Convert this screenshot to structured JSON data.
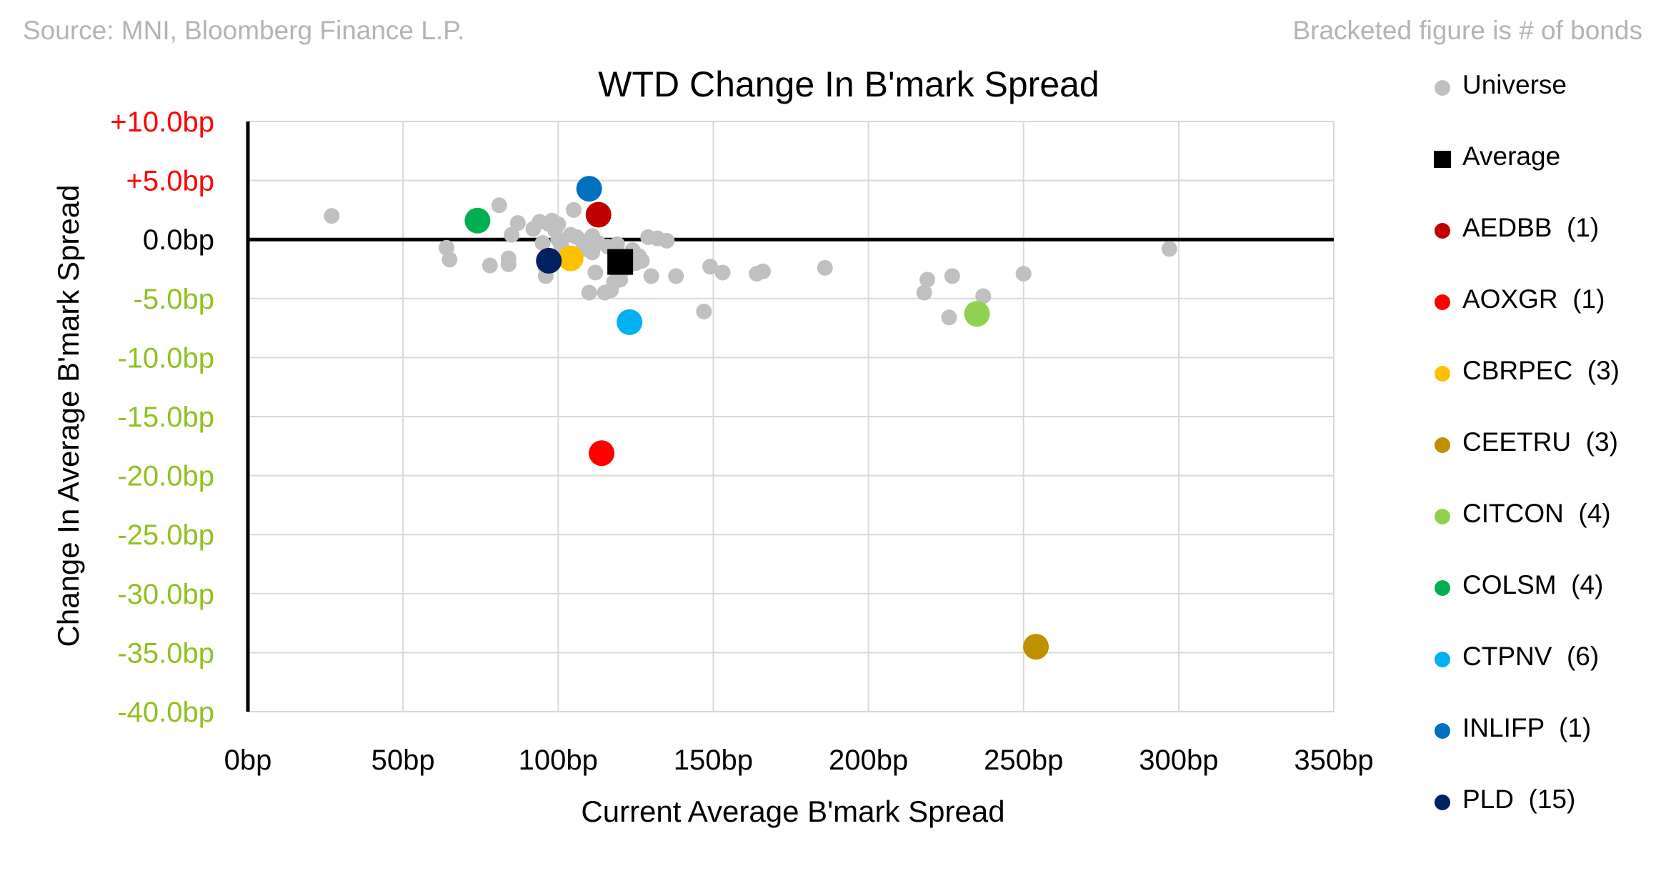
{
  "header": {
    "source": "Source: MNI, Bloomberg Finance L.P.",
    "note": "Bracketed figure is # of bonds"
  },
  "legend": [
    {
      "label": "Universe",
      "color": "#c0c0c0",
      "shape": "circle"
    },
    {
      "label": "Average",
      "color": "#000000",
      "shape": "square"
    },
    {
      "label": "AEDBB  (1)",
      "color": "#c00000",
      "shape": "circle"
    },
    {
      "label": "AOXGR  (1)",
      "color": "#ff0000",
      "shape": "circle"
    },
    {
      "label": "CBRPEC  (3)",
      "color": "#ffc000",
      "shape": "circle"
    },
    {
      "label": "CEETRU  (3)",
      "color": "#bf9000",
      "shape": "circle"
    },
    {
      "label": "CITCON  (4)",
      "color": "#92d050",
      "shape": "circle"
    },
    {
      "label": "COLSM  (4)",
      "color": "#00b050",
      "shape": "circle"
    },
    {
      "label": "CTPNV  (6)",
      "color": "#00b0f0",
      "shape": "circle"
    },
    {
      "label": "INLIFP  (1)",
      "color": "#0070c0",
      "shape": "circle"
    },
    {
      "label": "PLD  (15)",
      "color": "#002060",
      "shape": "circle"
    }
  ],
  "chart_data": {
    "type": "scatter",
    "title": "WTD Change In B'mark Spread",
    "xlabel": "Current Average B'mark Spread",
    "ylabel": "Change In Average B'mark Spread",
    "xlim": [
      0,
      350
    ],
    "ylim": [
      -40,
      10
    ],
    "x_ticks": [
      0,
      50,
      100,
      150,
      200,
      250,
      300,
      350
    ],
    "x_tick_labels": [
      "0bp",
      "50bp",
      "100bp",
      "150bp",
      "200bp",
      "250bp",
      "300bp",
      "350bp"
    ],
    "y_ticks": [
      10,
      5,
      0,
      -5,
      -10,
      -15,
      -20,
      -25,
      -30,
      -35,
      -40
    ],
    "y_tick_labels": [
      "+10.0bp",
      "+5.0bp",
      "0.0bp",
      "-5.0bp",
      "-10.0bp",
      "-15.0bp",
      "-20.0bp",
      "-25.0bp",
      "-30.0bp",
      "-35.0bp",
      "-40.0bp"
    ],
    "y_tick_colors": [
      "#ff0000",
      "#ff0000",
      "#000000",
      "#8ec21f",
      "#8ec21f",
      "#8ec21f",
      "#8ec21f",
      "#8ec21f",
      "#8ec21f",
      "#8ec21f",
      "#8ec21f"
    ],
    "grid": true,
    "series": [
      {
        "name": "Universe",
        "color": "#c0c0c0",
        "points": [
          [
            27,
            2.0
          ],
          [
            64,
            -0.7
          ],
          [
            65,
            -1.7
          ],
          [
            78,
            -2.2
          ],
          [
            81,
            2.9
          ],
          [
            84,
            -1.6
          ],
          [
            84,
            -2.1
          ],
          [
            85,
            0.4
          ],
          [
            87,
            1.4
          ],
          [
            92,
            0.9
          ],
          [
            94,
            1.5
          ],
          [
            95,
            -0.3
          ],
          [
            96,
            -2.4
          ],
          [
            96,
            -3.1
          ],
          [
            97,
            1.3
          ],
          [
            98,
            1.6
          ],
          [
            99,
            0.8
          ],
          [
            100,
            1.3
          ],
          [
            100,
            0.0
          ],
          [
            101,
            -0.5
          ],
          [
            104,
            0.4
          ],
          [
            105,
            2.5
          ],
          [
            106,
            0.2
          ],
          [
            108,
            -0.8
          ],
          [
            109,
            -0.2
          ],
          [
            110,
            -4.5
          ],
          [
            111,
            0.3
          ],
          [
            111,
            -1.1
          ],
          [
            112,
            -2.8
          ],
          [
            113,
            -0.3
          ],
          [
            115,
            -4.5
          ],
          [
            116,
            -0.6
          ],
          [
            117,
            -4.3
          ],
          [
            118,
            -3.6
          ],
          [
            119,
            -0.4
          ],
          [
            120,
            -1.4
          ],
          [
            120,
            -3.4
          ],
          [
            122,
            -2.4
          ],
          [
            123,
            -1.7
          ],
          [
            124,
            -0.9
          ],
          [
            125,
            -2.0
          ],
          [
            126,
            -1.4
          ],
          [
            127,
            -1.8
          ],
          [
            129,
            0.2
          ],
          [
            130,
            -3.1
          ],
          [
            132,
            0.1
          ],
          [
            135,
            -0.1
          ],
          [
            138,
            -3.1
          ],
          [
            147,
            -6.1
          ],
          [
            149,
            -2.3
          ],
          [
            153,
            -2.8
          ],
          [
            164,
            -2.9
          ],
          [
            166,
            -2.7
          ],
          [
            186,
            -2.4
          ],
          [
            218,
            -4.5
          ],
          [
            219,
            -3.4
          ],
          [
            226,
            -6.6
          ],
          [
            227,
            -3.1
          ],
          [
            237,
            -4.8
          ],
          [
            250,
            -2.9
          ],
          [
            297,
            -0.8
          ]
        ]
      },
      {
        "name": "Average",
        "color": "#000000",
        "shape": "square",
        "points": [
          [
            120,
            -1.9
          ]
        ]
      },
      {
        "name": "AEDBB",
        "color": "#c00000",
        "points": [
          [
            113,
            2.1
          ]
        ]
      },
      {
        "name": "AOXGR",
        "color": "#ff0000",
        "points": [
          [
            114,
            -18.1
          ]
        ]
      },
      {
        "name": "CBRPEC",
        "color": "#ffc000",
        "points": [
          [
            104,
            -1.6
          ]
        ]
      },
      {
        "name": "CEETRU",
        "color": "#bf9000",
        "points": [
          [
            254,
            -34.5
          ]
        ]
      },
      {
        "name": "CITCON",
        "color": "#92d050",
        "points": [
          [
            235,
            -6.3
          ]
        ]
      },
      {
        "name": "COLSM",
        "color": "#00b050",
        "points": [
          [
            74,
            1.6
          ]
        ]
      },
      {
        "name": "CTPNV",
        "color": "#00b0f0",
        "points": [
          [
            123,
            -7.0
          ]
        ]
      },
      {
        "name": "INLIFP",
        "color": "#0070c0",
        "points": [
          [
            110,
            4.3
          ]
        ]
      },
      {
        "name": "PLD",
        "color": "#002060",
        "points": [
          [
            97,
            -1.8
          ]
        ]
      }
    ]
  }
}
